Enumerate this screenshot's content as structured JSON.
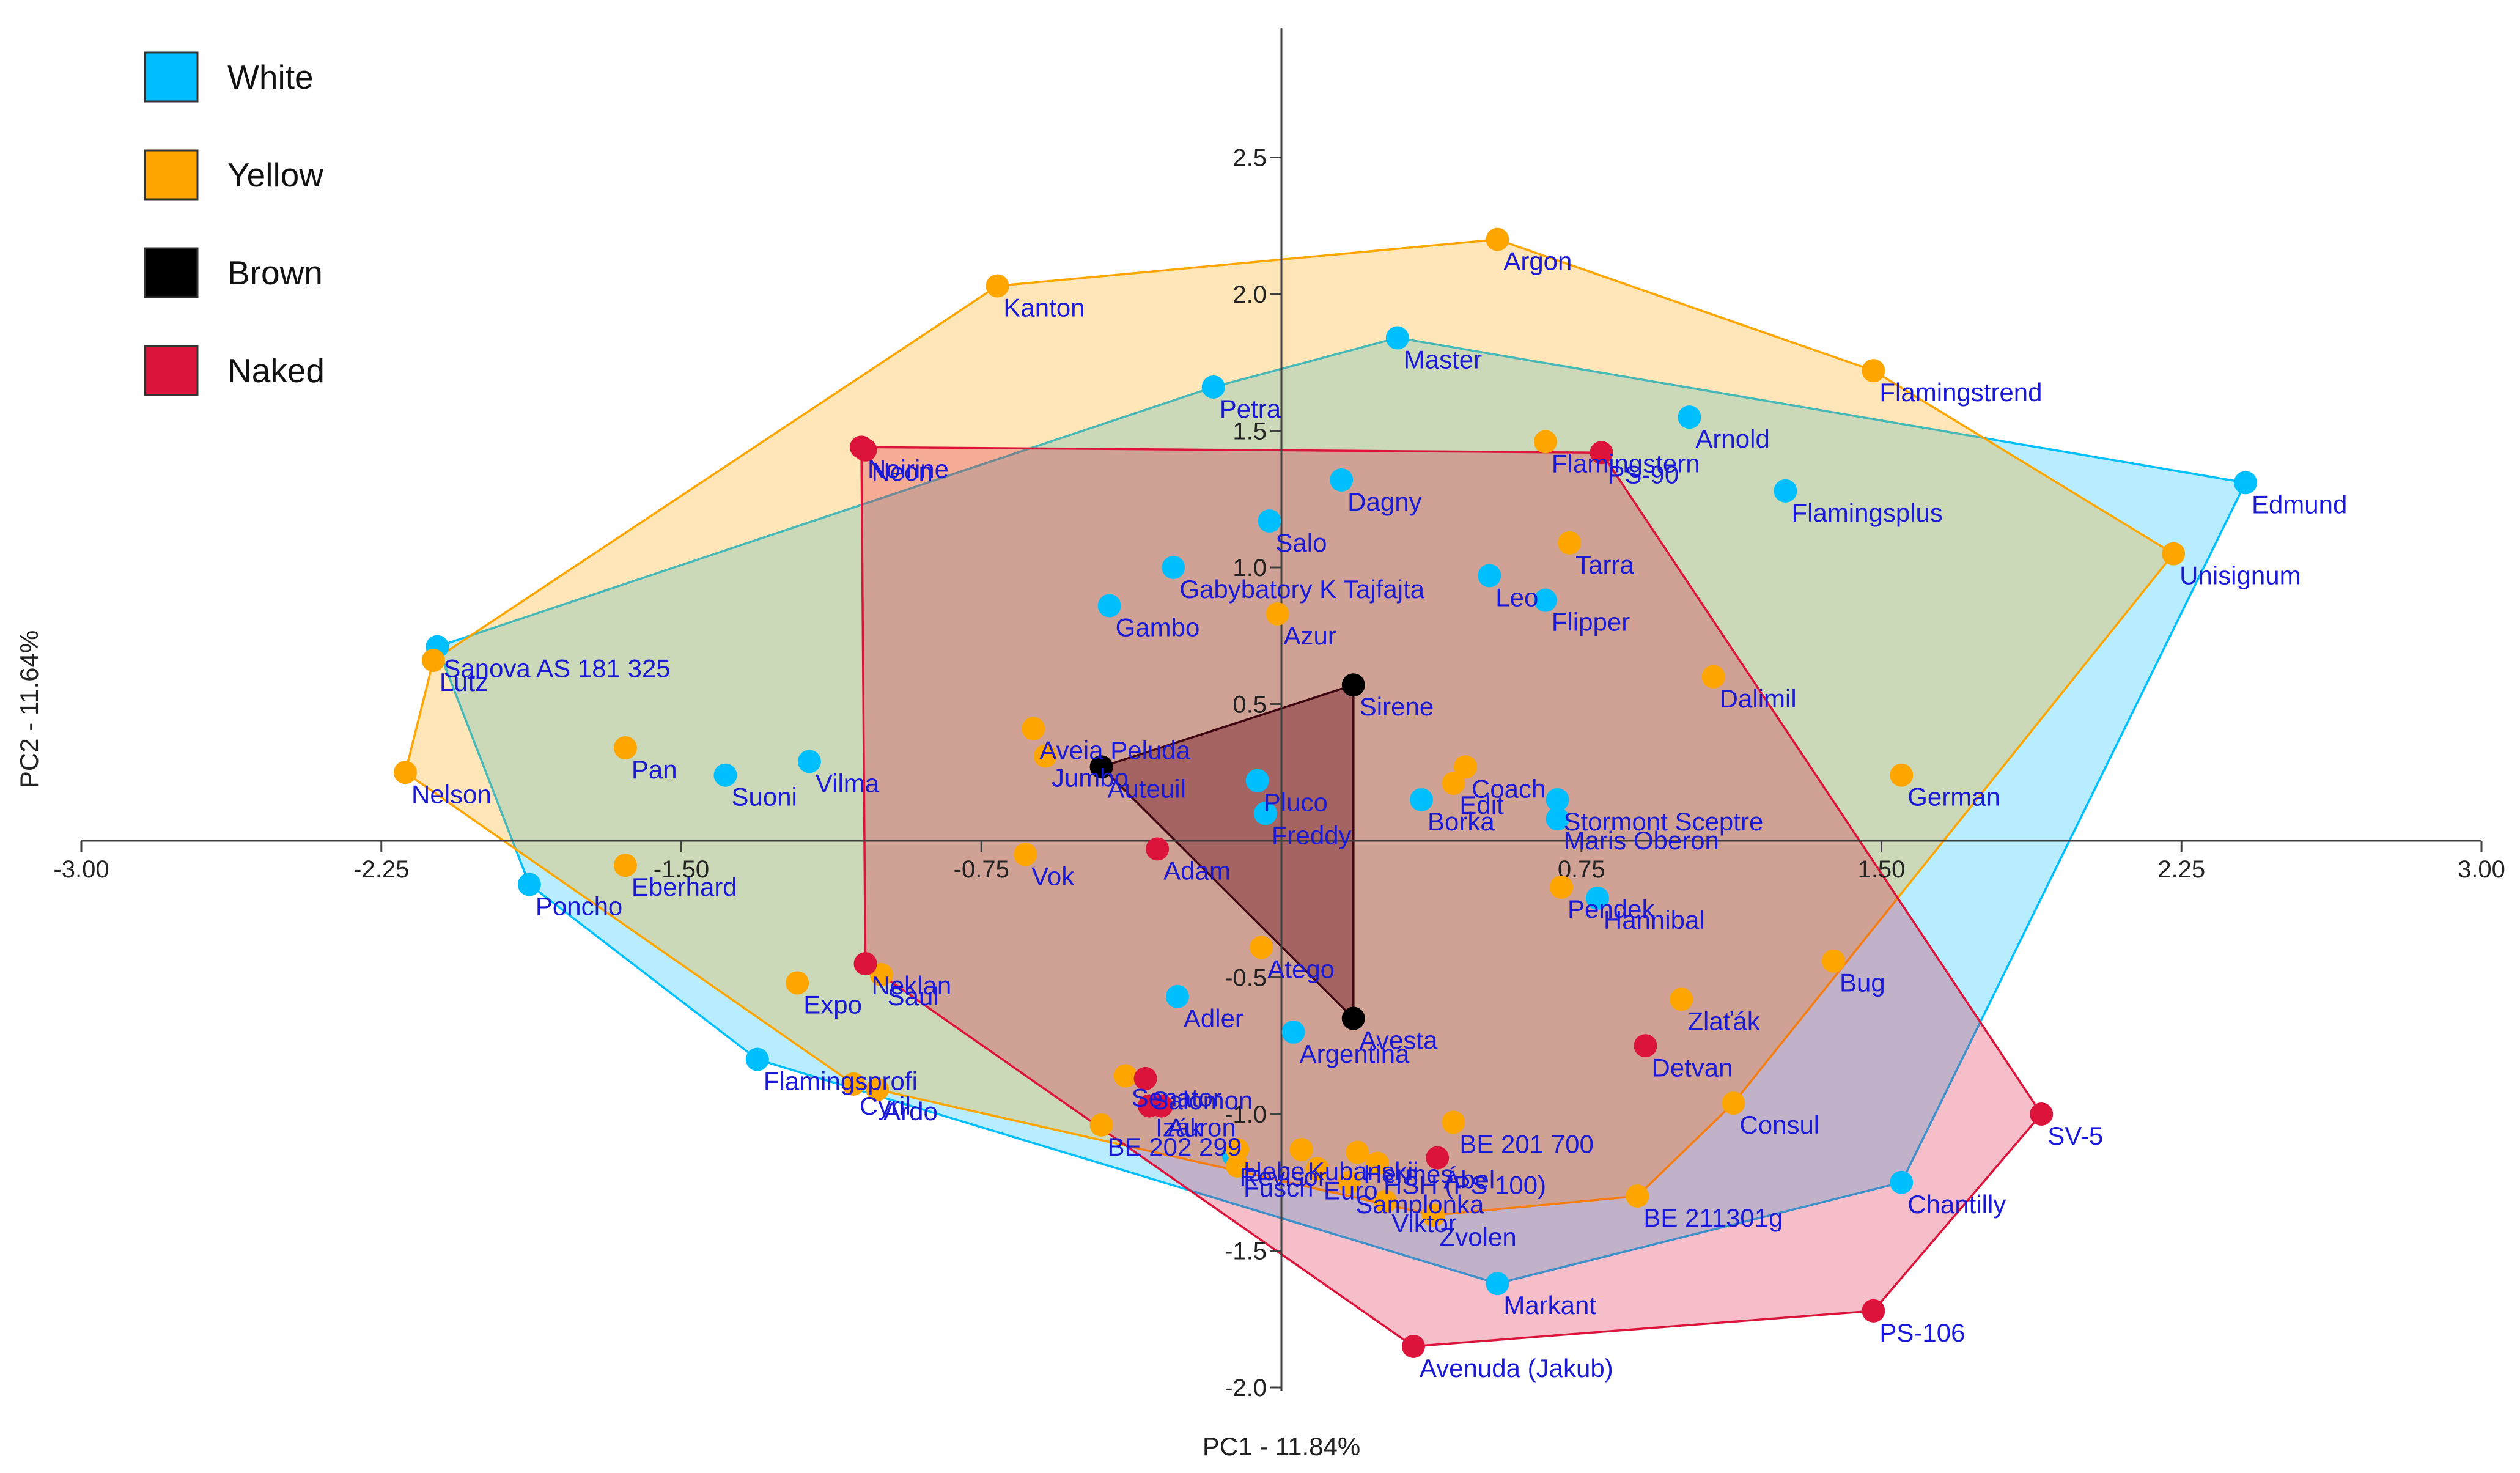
{
  "chart_data": {
    "type": "scatter",
    "title": "",
    "xlabel": "PC1 - 11.84%",
    "ylabel": "PC2 - 11.64%",
    "xlim": [
      -3.0,
      3.0
    ],
    "ylim": [
      -2.0,
      3.0
    ],
    "xticks": [
      "-3.00",
      "-2.25",
      "-1.50",
      "-0.75",
      "0.75",
      "1.50",
      "2.25",
      "3.00"
    ],
    "yticks": [
      "-2.0",
      "-1.5",
      "-1.0",
      "-0.5",
      "0.5",
      "1.0",
      "1.5",
      "2.0",
      "2.5"
    ],
    "legend": {
      "position": "top-left",
      "entries": [
        {
          "name": "White",
          "color": "#00BFFF"
        },
        {
          "name": "Yellow",
          "color": "#FFA500"
        },
        {
          "name": "Brown",
          "color": "#000000"
        },
        {
          "name": "Naked",
          "color": "#DC143C"
        }
      ]
    },
    "series": [
      {
        "name": "White",
        "color": "#00BFFF",
        "hull_fill": "#00BFFF",
        "points": [
          {
            "label": "Master",
            "x": 0.29,
            "y": 1.84
          },
          {
            "label": "Petra",
            "x": -0.17,
            "y": 1.66
          },
          {
            "label": "Arnold",
            "x": 1.02,
            "y": 1.55
          },
          {
            "label": "Edmund",
            "x": 2.41,
            "y": 1.31
          },
          {
            "label": "Flamingsplus",
            "x": 1.26,
            "y": 1.28
          },
          {
            "label": "Dagny",
            "x": 0.15,
            "y": 1.32
          },
          {
            "label": "Salo",
            "x": -0.03,
            "y": 1.17
          },
          {
            "label": "Gabybatory K Tajfajta",
            "x": -0.27,
            "y": 1.0
          },
          {
            "label": "Leo",
            "x": 0.52,
            "y": 0.97
          },
          {
            "label": "Flipper",
            "x": 0.66,
            "y": 0.88
          },
          {
            "label": "Gambo",
            "x": -0.43,
            "y": 0.86
          },
          {
            "label": "Sanova AS 181 325",
            "x": -2.11,
            "y": 0.71
          },
          {
            "label": "Vilma",
            "x": -1.18,
            "y": 0.29
          },
          {
            "label": "Suoni",
            "x": -1.39,
            "y": 0.24
          },
          {
            "label": "Pluco",
            "x": -0.06,
            "y": 0.22
          },
          {
            "label": "Borka",
            "x": 0.35,
            "y": 0.15
          },
          {
            "label": "Stormont Sceptre",
            "x": 0.69,
            "y": 0.15
          },
          {
            "label": "Maris Oberon",
            "x": 0.69,
            "y": 0.08
          },
          {
            "label": "Freddy",
            "x": -0.04,
            "y": 0.1
          },
          {
            "label": "Poncho",
            "x": -1.88,
            "y": -0.16
          },
          {
            "label": "Hannibal",
            "x": 0.79,
            "y": -0.21
          },
          {
            "label": "Adler",
            "x": -0.26,
            "y": -0.57
          },
          {
            "label": "Argentina",
            "x": 0.03,
            "y": -0.7
          },
          {
            "label": "Flamingsprofi",
            "x": -1.31,
            "y": -0.8
          },
          {
            "label": "Revisor",
            "x": -0.12,
            "y": -1.15
          },
          {
            "label": "Chantilly",
            "x": 1.55,
            "y": -1.25
          },
          {
            "label": "Markant",
            "x": 0.54,
            "y": -1.62
          }
        ]
      },
      {
        "name": "Yellow",
        "color": "#FFA500",
        "hull_fill": "#FFA500",
        "points": [
          {
            "label": "Argon",
            "x": 0.54,
            "y": 2.2
          },
          {
            "label": "Kanton",
            "x": -0.71,
            "y": 2.03
          },
          {
            "label": "Flamingstrend",
            "x": 1.48,
            "y": 1.72
          },
          {
            "label": "Flamingstern",
            "x": 0.66,
            "y": 1.46
          },
          {
            "label": "Unisignum",
            "x": 2.23,
            "y": 1.05
          },
          {
            "label": "Tarra",
            "x": 0.72,
            "y": 1.09
          },
          {
            "label": "Azur",
            "x": -0.01,
            "y": 0.83
          },
          {
            "label": "Dalimil",
            "x": 1.08,
            "y": 0.6
          },
          {
            "label": "Lutz",
            "x": -2.12,
            "y": 0.66
          },
          {
            "label": "Aveia Peluda",
            "x": -0.62,
            "y": 0.41
          },
          {
            "label": "Jumbo",
            "x": -0.59,
            "y": 0.31
          },
          {
            "label": "Pan",
            "x": -1.64,
            "y": 0.34
          },
          {
            "label": "Nelson",
            "x": -2.19,
            "y": 0.25
          },
          {
            "label": "Coach",
            "x": 0.46,
            "y": 0.27
          },
          {
            "label": "German",
            "x": 1.55,
            "y": 0.24
          },
          {
            "label": "Edit",
            "x": 0.43,
            "y": 0.21
          },
          {
            "label": "Vok",
            "x": -0.64,
            "y": -0.05
          },
          {
            "label": "Eberhard",
            "x": -1.64,
            "y": -0.09
          },
          {
            "label": "Pendek",
            "x": 0.7,
            "y": -0.17
          },
          {
            "label": "Atego",
            "x": -0.05,
            "y": -0.39
          },
          {
            "label": "Bug",
            "x": 1.38,
            "y": -0.44
          },
          {
            "label": "Saul",
            "x": -1.0,
            "y": -0.49
          },
          {
            "label": "Expo",
            "x": -1.21,
            "y": -0.52
          },
          {
            "label": "Zlaťák",
            "x": 1.0,
            "y": -0.58
          },
          {
            "label": "Senator",
            "x": -0.39,
            "y": -0.86
          },
          {
            "label": "Ardo",
            "x": -1.01,
            "y": -0.91
          },
          {
            "label": "Cyril",
            "x": -1.07,
            "y": -0.89
          },
          {
            "label": "Consul",
            "x": 1.13,
            "y": -0.96
          },
          {
            "label": "BE 202 299",
            "x": -0.45,
            "y": -1.04
          },
          {
            "label": "BE 201 700",
            "x": 0.43,
            "y": -1.03
          },
          {
            "label": "Hebe",
            "x": -0.11,
            "y": -1.13
          },
          {
            "label": "Kubanskij",
            "x": 0.05,
            "y": -1.13
          },
          {
            "label": "Hermes",
            "x": 0.19,
            "y": -1.14
          },
          {
            "label": "HSH (PS 100)",
            "x": 0.24,
            "y": -1.18
          },
          {
            "label": "Euro",
            "x": 0.09,
            "y": -1.2
          },
          {
            "label": "Fusch",
            "x": -0.11,
            "y": -1.19
          },
          {
            "label": "Samplonka",
            "x": 0.17,
            "y": -1.25
          },
          {
            "label": "Viktor",
            "x": 0.26,
            "y": -1.32
          },
          {
            "label": "Zvolen",
            "x": 0.38,
            "y": -1.37
          },
          {
            "label": "BE 211301g",
            "x": 0.89,
            "y": -1.3
          }
        ]
      },
      {
        "name": "Brown",
        "color": "#000000",
        "hull_fill": "#4a1a1a",
        "points": [
          {
            "label": "Sirene",
            "x": 0.18,
            "y": 0.57
          },
          {
            "label": "Auteuil",
            "x": -0.45,
            "y": 0.27
          },
          {
            "label": "Avesta",
            "x": 0.18,
            "y": -0.65
          }
        ]
      },
      {
        "name": "Naked",
        "color": "#DC143C",
        "hull_fill": "#DC143C",
        "points": [
          {
            "label": "Noirine",
            "x": -1.05,
            "y": 1.44
          },
          {
            "label": "Neon",
            "x": -1.04,
            "y": 1.43
          },
          {
            "label": "PS-90",
            "x": 0.8,
            "y": 1.42
          },
          {
            "label": "Adam",
            "x": -0.31,
            "y": -0.03
          },
          {
            "label": "Neklan",
            "x": -1.04,
            "y": -0.45
          },
          {
            "label": "Salomon",
            "x": -0.34,
            "y": -0.87
          },
          {
            "label": "Auron",
            "x": -0.3,
            "y": -0.97
          },
          {
            "label": "Izák",
            "x": -0.33,
            "y": -0.97
          },
          {
            "label": "Ábel",
            "x": 0.39,
            "y": -1.16
          },
          {
            "label": "Detvan",
            "x": 0.91,
            "y": -0.75
          },
          {
            "label": "SV-5",
            "x": 1.9,
            "y": -1.0
          },
          {
            "label": "PS-106",
            "x": 1.48,
            "y": -1.72
          },
          {
            "label": "Avenuda (Jakub)",
            "x": 0.33,
            "y": -1.85
          }
        ]
      }
    ]
  }
}
